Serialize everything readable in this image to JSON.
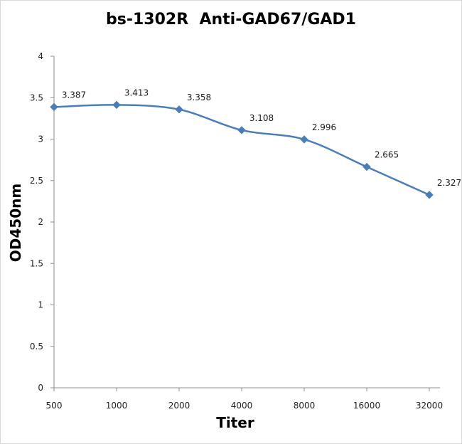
{
  "chart_data": {
    "type": "line",
    "title": "bs-1302R  Anti-GAD67/GAD1",
    "xlabel": "Titer",
    "ylabel": "OD450nm",
    "categories": [
      "500",
      "1000",
      "2000",
      "4000",
      "8000",
      "16000",
      "32000"
    ],
    "series": [
      {
        "values": [
          3.387,
          3.413,
          3.358,
          3.108,
          2.996,
          2.665,
          2.327
        ],
        "labels": [
          "3.387",
          "3.413",
          "3.358",
          "3.108",
          "2.996",
          "2.665",
          "2.327"
        ],
        "color": "#4a7ebb",
        "marker": "diamond"
      }
    ],
    "ylim": [
      0,
      4
    ],
    "yticks": [
      "0",
      "0.5",
      "1",
      "1.5",
      "2",
      "2.5",
      "3",
      "3.5",
      "4"
    ],
    "grid": false,
    "legend": "none"
  }
}
